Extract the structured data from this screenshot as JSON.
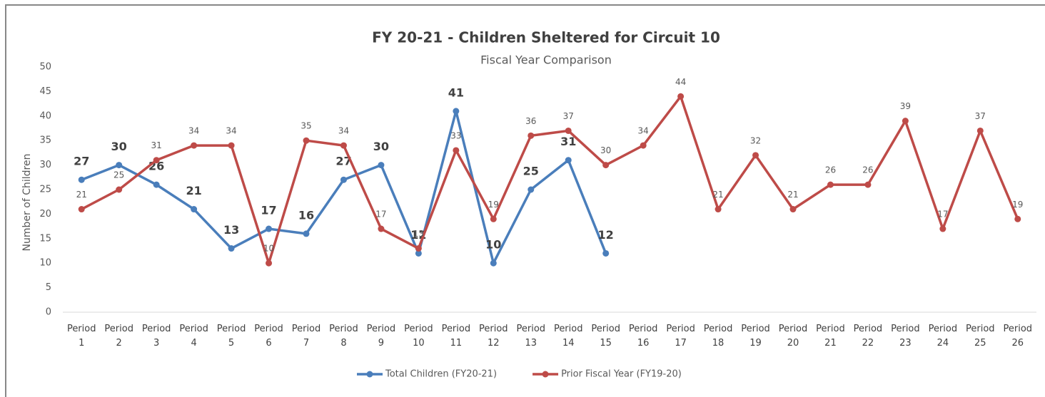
{
  "chart_data": {
    "type": "line",
    "title": "FY 20-21 - Children Sheltered for Circuit 10",
    "subtitle": "Fiscal Year Comparison",
    "y_label": "Number of Children",
    "categories": [
      "Period 1",
      "Period 2",
      "Period 3",
      "Period 4",
      "Period 5",
      "Period 6",
      "Period 7",
      "Period 8",
      "Period 9",
      "Period 10",
      "Period 11",
      "Period 12",
      "Period 13",
      "Period 14",
      "Period 15",
      "Period 16",
      "Period 17",
      "Period 18",
      "Period 19",
      "Period 20",
      "Period 21",
      "Period 22",
      "Period 23",
      "Period 24",
      "Period 25",
      "Period 26"
    ],
    "series": [
      {
        "name": "Total Children (FY20-21)",
        "color": "#4a7ebb",
        "values": [
          27,
          30,
          26,
          21,
          13,
          17,
          16,
          27,
          30,
          12,
          41,
          10,
          25,
          31,
          12,
          null,
          null,
          null,
          null,
          null,
          null,
          null,
          null,
          null,
          null,
          null
        ]
      },
      {
        "name": "Prior Fiscal Year (FY19-20)",
        "color": "#be4b48",
        "values": [
          21,
          25,
          31,
          34,
          34,
          10,
          35,
          34,
          17,
          13,
          33,
          19,
          36,
          37,
          30,
          34,
          44,
          21,
          32,
          21,
          26,
          26,
          39,
          17,
          37,
          19
        ]
      }
    ],
    "ylim": [
      0,
      50
    ],
    "yticks": [
      0,
      5,
      10,
      15,
      20,
      25,
      30,
      35,
      40,
      45,
      50
    ],
    "grid": false,
    "legend": "bottom"
  }
}
